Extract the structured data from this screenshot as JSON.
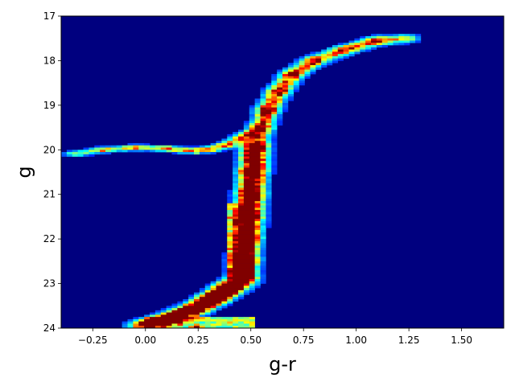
{
  "chart_data": {
    "type": "heatmap",
    "title": "",
    "xlabel": "g-r",
    "ylabel": "g",
    "xlim": [
      -0.4,
      1.7
    ],
    "ylim": [
      24,
      17
    ],
    "y_axis_inverted": true,
    "grid": false,
    "x_ticks": [
      -0.25,
      0.0,
      0.25,
      0.5,
      0.75,
      1.0,
      1.25,
      1.5
    ],
    "x_tick_labels": [
      "−0.25",
      "0.00",
      "0.25",
      "0.50",
      "0.75",
      "1.00",
      "1.25",
      "1.50"
    ],
    "y_ticks": [
      17,
      18,
      19,
      20,
      21,
      22,
      23,
      24
    ],
    "y_tick_labels": [
      "17",
      "18",
      "19",
      "20",
      "21",
      "22",
      "23",
      "24"
    ],
    "colormap": "jet",
    "background_color": "#00007f",
    "features": [
      {
        "name": "upper red giant branch",
        "kind": "line",
        "points": [
          [
            1.25,
            17.5
          ],
          [
            1.1,
            17.55
          ],
          [
            0.95,
            17.75
          ],
          [
            0.8,
            18.0
          ],
          [
            0.7,
            18.3
          ],
          [
            0.63,
            18.7
          ],
          [
            0.58,
            19.1
          ],
          [
            0.55,
            19.5
          ],
          [
            0.52,
            19.9
          ]
        ],
        "dgr": 0.035,
        "dg": 0.06,
        "spacing": 0.07,
        "intensity": 0.36
      },
      {
        "name": "lower red giant branch",
        "kind": "line",
        "points": [
          [
            0.52,
            19.9
          ],
          [
            0.51,
            20.5
          ],
          [
            0.5,
            21.0
          ],
          [
            0.49,
            21.5
          ],
          [
            0.48,
            22.0
          ],
          [
            0.47,
            22.5
          ],
          [
            0.46,
            22.9
          ]
        ],
        "dgr": 0.04,
        "dg": 0.06,
        "spacing": 0.06,
        "intensity": 0.48
      },
      {
        "name": "subgiant branch",
        "kind": "line",
        "points": [
          [
            0.46,
            22.9
          ],
          [
            0.4,
            23.1
          ],
          [
            0.32,
            23.35
          ],
          [
            0.22,
            23.6
          ],
          [
            0.1,
            23.8
          ],
          [
            -0.02,
            23.95
          ]
        ],
        "dgr": 0.045,
        "dg": 0.06,
        "spacing": 0.05,
        "intensity": 0.55
      },
      {
        "name": "horizontal branch",
        "kind": "line",
        "points": [
          [
            -0.35,
            20.1
          ],
          [
            -0.2,
            20.0
          ],
          [
            -0.05,
            19.95
          ],
          [
            0.1,
            19.97
          ],
          [
            0.2,
            20.02
          ],
          [
            0.3,
            20.0
          ],
          [
            0.38,
            19.9
          ],
          [
            0.45,
            19.75
          ],
          [
            0.5,
            19.6
          ]
        ],
        "dgr": 0.03,
        "dg": 0.04,
        "spacing": 0.05,
        "intensity": 0.26
      },
      {
        "name": "turnoff wide band",
        "kind": "box",
        "x0": 0.38,
        "x1": 0.52,
        "y0": 21.2,
        "y1": 22.9,
        "intensity": 0.55
      },
      {
        "name": "main sequence base",
        "kind": "box",
        "x0": 0.0,
        "x1": 0.52,
        "y0": 23.75,
        "y1": 24.0,
        "intensity": 0.6
      }
    ],
    "hotspots": [
      {
        "name": "horizontal branch clump",
        "gr": 0.25,
        "g": 20.0,
        "value": 0.72
      },
      {
        "name": "turnoff clump",
        "gr": 0.47,
        "g": 22.5,
        "value": 0.75
      },
      {
        "name": "base clump",
        "gr": 0.25,
        "g": 23.75,
        "value": 0.8
      },
      {
        "name": "base peak",
        "gr": 0.24,
        "g": 23.98,
        "value": 1.0
      }
    ]
  }
}
